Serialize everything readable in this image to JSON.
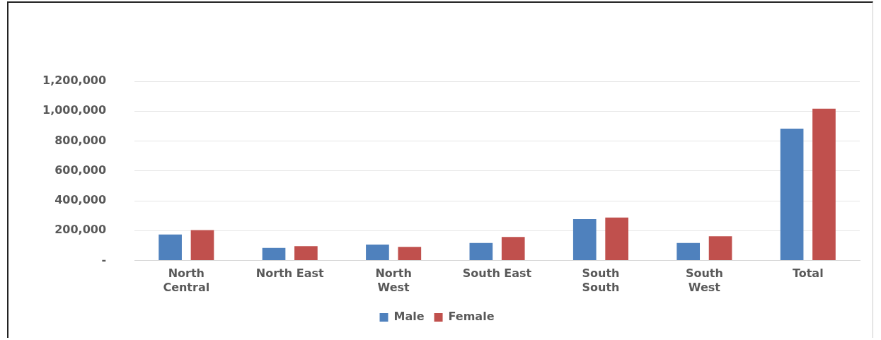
{
  "chart_data": {
    "type": "bar",
    "categories": [
      "North\nCentral",
      "North East",
      "North\nWest",
      "South East",
      "South\nSouth",
      "South\nWest",
      "Total"
    ],
    "series": [
      {
        "name": "Male",
        "color": "#4f81bd",
        "values": [
          174000,
          85000,
          107000,
          117000,
          277000,
          117000,
          883000
        ]
      },
      {
        "name": "Female",
        "color": "#c0504d",
        "values": [
          204000,
          96000,
          91000,
          158000,
          288000,
          163000,
          1017000
        ]
      }
    ],
    "ylim": [
      0,
      1200000
    ],
    "yticks": [
      {
        "value": 0,
        "label": "-"
      },
      {
        "value": 200000,
        "label": "200,000"
      },
      {
        "value": 400000,
        "label": "400,000"
      },
      {
        "value": 600000,
        "label": "600,000"
      },
      {
        "value": 800000,
        "label": "800,000"
      },
      {
        "value": 1000000,
        "label": "1,000,000"
      },
      {
        "value": 1200000,
        "label": "1,200,000"
      }
    ],
    "grid": "y",
    "legend": "bottom"
  }
}
